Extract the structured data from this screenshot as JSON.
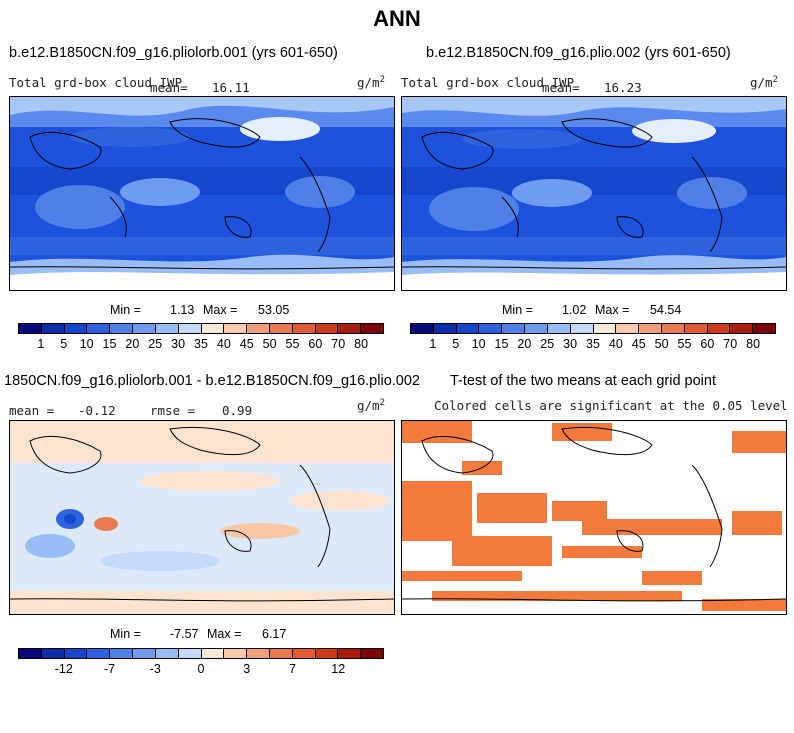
{
  "title": "ANN",
  "panels": {
    "p1": {
      "case": "b.e12.B1850CN.f09_g16.pliolorb.001 (yrs 601-650)",
      "variable": "Total grd-box cloud IWP",
      "mean_label": "mean=",
      "mean": "16.11",
      "units": "g/m",
      "units_exp": "2",
      "min_label": "Min =",
      "min": "1.13",
      "max_label": "Max =",
      "max": "53.05"
    },
    "p2": {
      "case": "b.e12.B1850CN.f09_g16.plio.002 (yrs 601-650)",
      "variable": "Total grd-box cloud IWP",
      "mean_label": "mean=",
      "mean": "16.23",
      "units": "g/m",
      "units_exp": "2",
      "min_label": "Min =",
      "min": "1.02",
      "max_label": "Max =",
      "max": "54.54"
    },
    "p3": {
      "title": "1850CN.f09_g16.pliolorb.001 - b.e12.B1850CN.f09_g16.plio.002",
      "mean_label": "mean =",
      "mean": "-0.12",
      "rmse_label": "rmse =",
      "rmse": "0.99",
      "units": "g/m",
      "units_exp": "2",
      "min_label": "Min =",
      "min": "-7.57",
      "max_label": "Max =",
      "max": "6.17"
    },
    "p4": {
      "title": "T-test of the two means at each grid point",
      "subtitle": "Colored cells are significant at the 0.05 level"
    }
  },
  "colorbars": {
    "abs": {
      "colors": [
        "#08087a",
        "#0c2ea8",
        "#1646cc",
        "#2e62de",
        "#4f80e8",
        "#6f9cee",
        "#98bcf4",
        "#c4daf8",
        "#f8e8d6",
        "#f8c8a8",
        "#f0a078",
        "#ea7a50",
        "#e45a34",
        "#cc3a1c",
        "#a81e0e",
        "#7a0606"
      ],
      "ticks": [
        "1",
        "5",
        "10",
        "15",
        "20",
        "25",
        "30",
        "35",
        "40",
        "45",
        "50",
        "55",
        "60",
        "70",
        "80"
      ]
    },
    "diff": {
      "colors": [
        "#08087a",
        "#0c2ea8",
        "#1646cc",
        "#2e62de",
        "#4f80e8",
        "#6f9cee",
        "#98bcf4",
        "#c4daf8",
        "#f8e8d6",
        "#f8c8a8",
        "#f0a078",
        "#ea7a50",
        "#e45a34",
        "#cc3a1c",
        "#a81e0e",
        "#7a0606"
      ],
      "ticks": [
        "-12",
        "-7",
        "-3",
        "0",
        "3",
        "7",
        "12"
      ]
    }
  },
  "colors": {
    "ttest_fill": "#f47a3c",
    "diff_bg": "#fbe3d0",
    "diff_blue": "#dce9fb"
  }
}
